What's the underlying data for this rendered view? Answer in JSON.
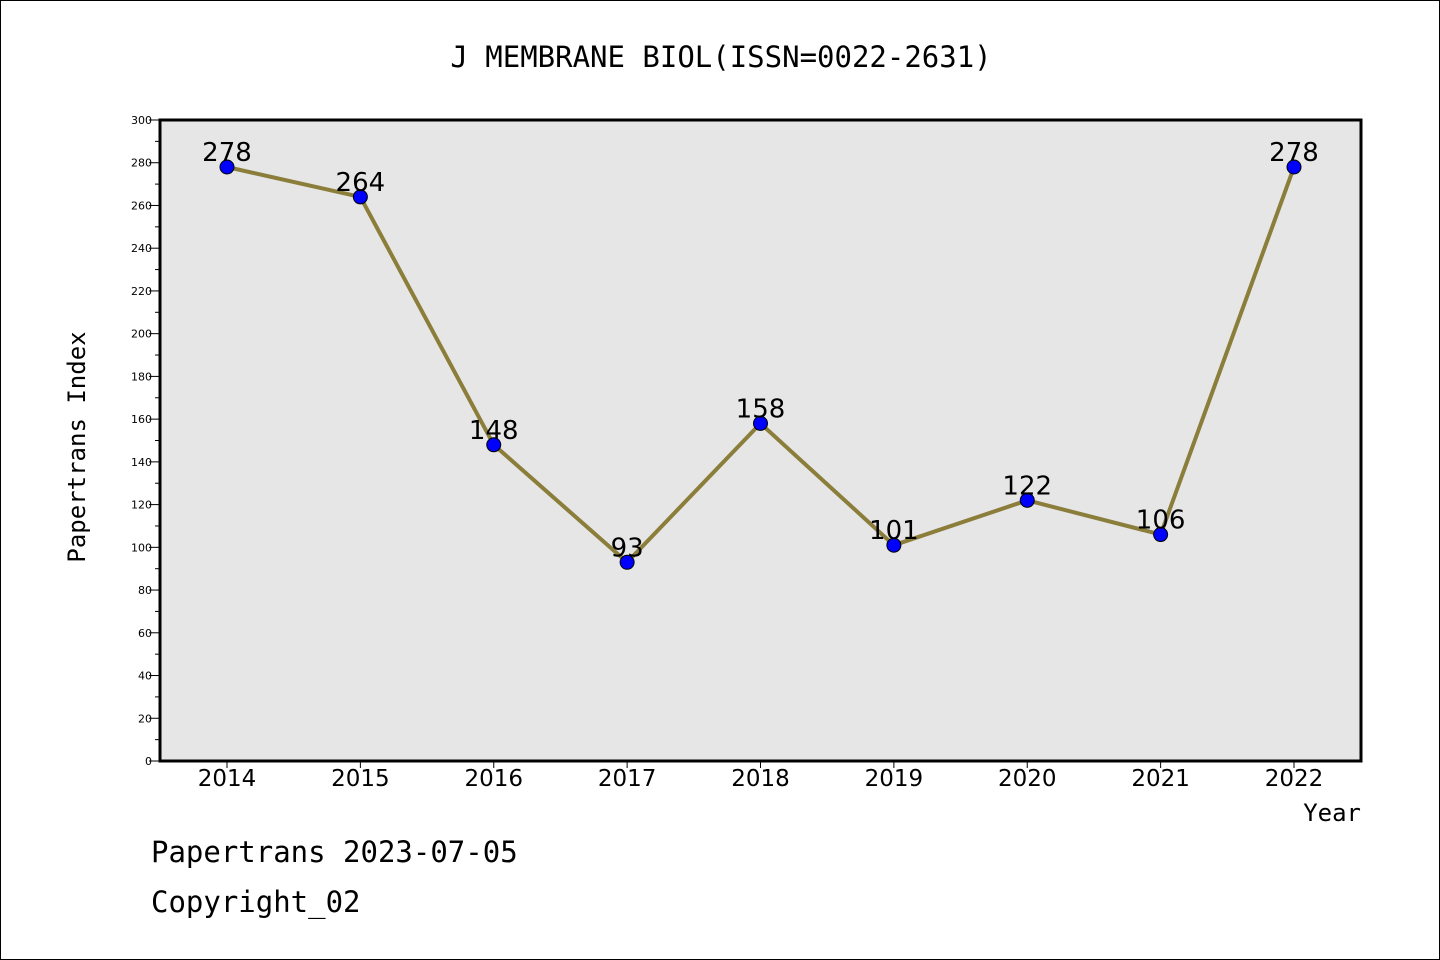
{
  "chart_data": {
    "type": "line",
    "title": "J MEMBRANE BIOL(ISSN=0022-2631)",
    "xlabel": "Year",
    "ylabel": "Papertrans Index",
    "categories": [
      "2014",
      "2015",
      "2016",
      "2017",
      "2018",
      "2019",
      "2020",
      "2021",
      "2022"
    ],
    "series": [
      {
        "values": [
          278,
          264,
          148,
          93,
          158,
          101,
          122,
          106,
          278
        ]
      }
    ],
    "ylim": [
      0,
      300
    ],
    "yticks": [
      0,
      20,
      40,
      60,
      80,
      100,
      120,
      140,
      160,
      180,
      200,
      220,
      240,
      260,
      280,
      300
    ],
    "grid": false,
    "plot_background": "#e6e6e6",
    "line_color": "#8b7d3a",
    "marker_color": "#0000ff"
  },
  "footer": {
    "line1": "Papertrans 2023-07-05",
    "line2": "Copyright_02"
  }
}
